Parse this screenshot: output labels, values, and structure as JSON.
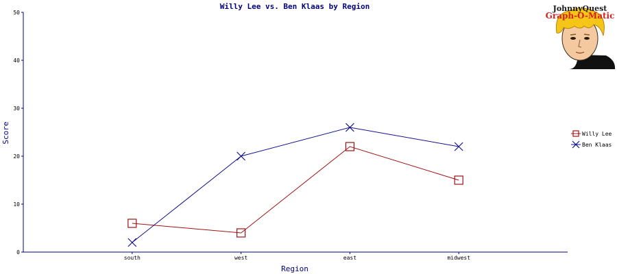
{
  "logo": {
    "line1": "JohnnyQuest",
    "line2": "Graph-O-Matic"
  },
  "colors": {
    "axis": "#000080",
    "series_1": "#a01010",
    "series_2": "#10108c"
  },
  "chart_data": {
    "type": "line",
    "title": "Willy Lee vs. Ben Klaas by Region",
    "xlabel": "Region",
    "ylabel": "Score",
    "categories": [
      "south",
      "west",
      "east",
      "midwest"
    ],
    "ylim": [
      0,
      50
    ],
    "yticks": [
      "0",
      "10",
      "20",
      "30",
      "40",
      "50"
    ],
    "grid": false,
    "legend_position": "right",
    "series": [
      {
        "name": "Willy Lee",
        "marker": "square",
        "values": [
          6,
          4,
          22,
          15
        ]
      },
      {
        "name": "Ben Klaas",
        "marker": "x",
        "values": [
          2,
          20,
          26,
          22
        ]
      }
    ]
  }
}
